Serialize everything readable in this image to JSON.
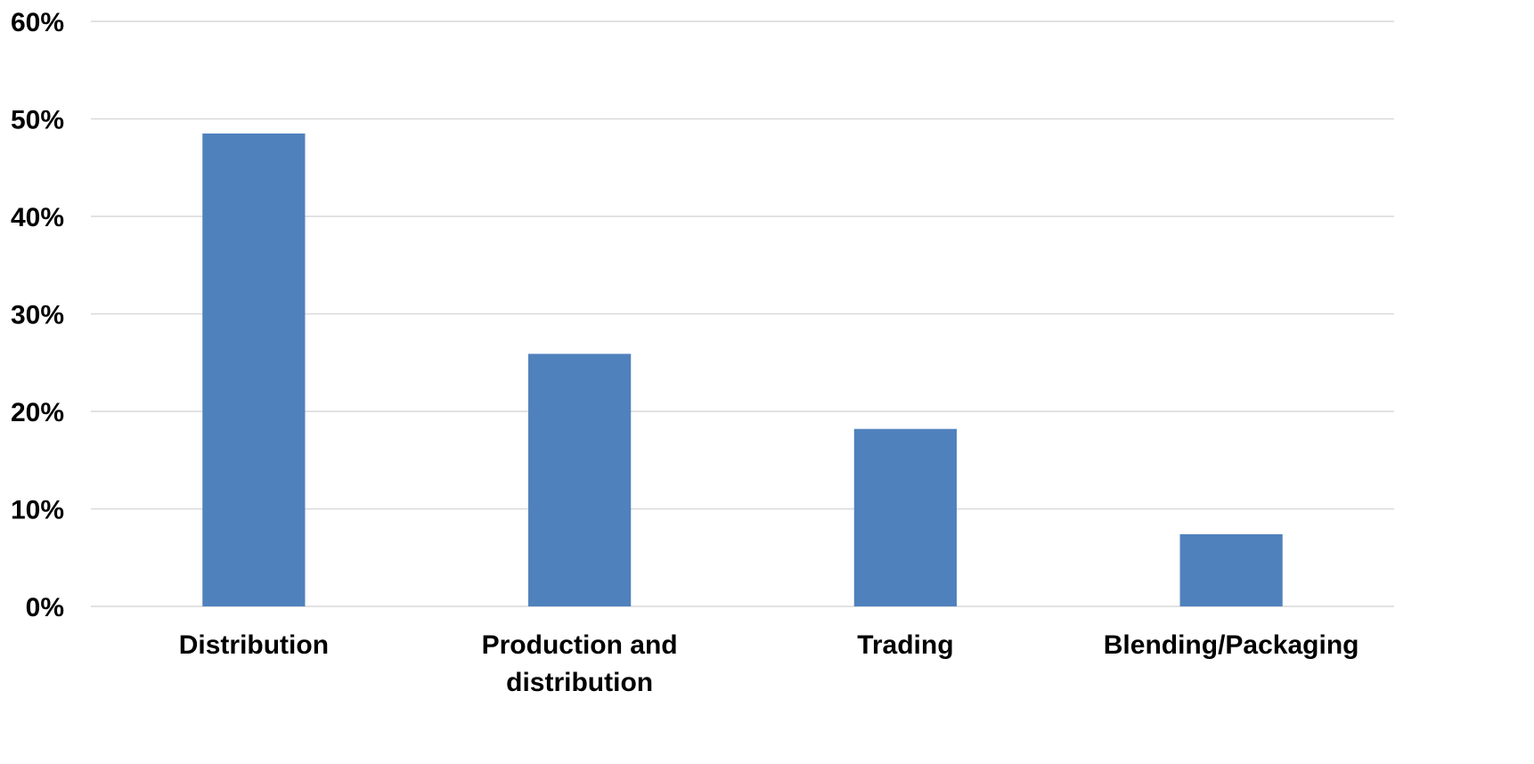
{
  "chart_data": {
    "type": "bar",
    "title": "",
    "xlabel": "",
    "ylabel": "",
    "categories": [
      [
        "Distribution"
      ],
      [
        "Production and",
        "distribution"
      ],
      [
        "Trading"
      ],
      [
        "Blending/Packaging"
      ]
    ],
    "values": [
      48.5,
      25.9,
      18.2,
      7.4
    ],
    "ylim": [
      0,
      60
    ],
    "ytick_step": 10,
    "ytick_labels": [
      "0%",
      "10%",
      "20%",
      "30%",
      "40%",
      "50%",
      "60%"
    ],
    "grid": true,
    "legend": "none",
    "bar_color": "#4f81bd"
  }
}
